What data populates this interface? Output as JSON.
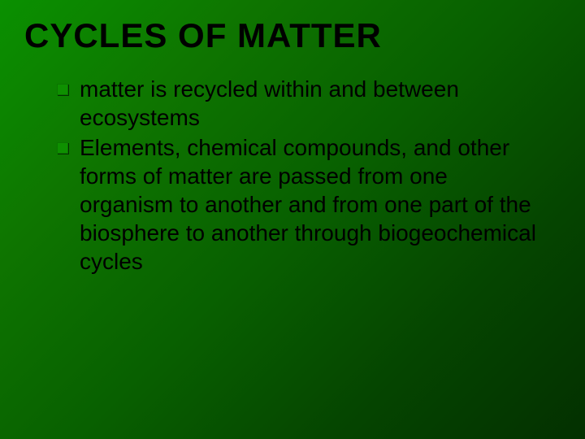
{
  "slide": {
    "title": "CYCLES OF MATTER",
    "bullets": [
      "matter is recycled within and between ecosystems",
      "Elements, chemical compounds, and other forms of matter are passed from one organism to another and from one part of the biosphere to another through biogeochemical cycles"
    ],
    "styling": {
      "background_gradient_start": "#0a9000",
      "background_gradient_end": "#033000",
      "title_color": "#000000",
      "title_fontsize": 42,
      "title_fontweight": 900,
      "body_color": "#000000",
      "body_fontsize": 28,
      "bullet_marker_color": "#0e9000",
      "bullet_marker_shadow": "#033000",
      "font_family": "Arial"
    }
  }
}
